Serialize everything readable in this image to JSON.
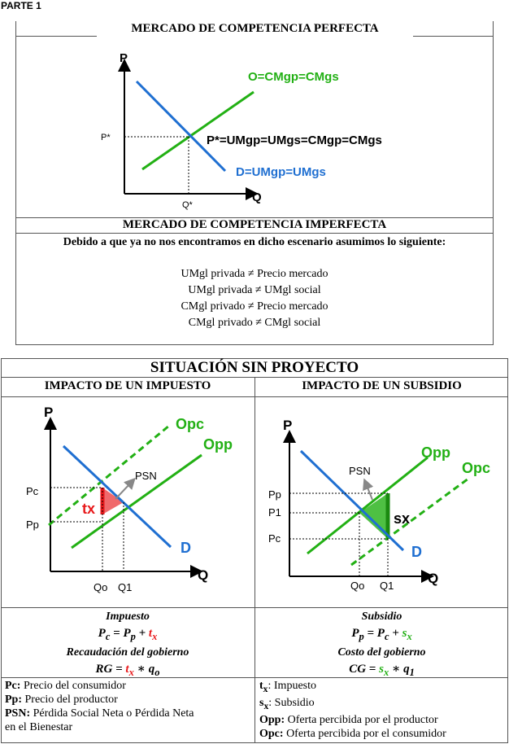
{
  "part_label": "PARTE 1",
  "top": {
    "perfect_title": "MERCADO DE COMPETENCIA PERFECTA",
    "chart": {
      "y_label": "P",
      "x_label": "Q",
      "p_star": "P*",
      "q_star": "Q*",
      "supply_label": "O=CMgp=CMgs",
      "equilibrium_label": "P*=UMgp=UMgs=CMgp=CMgs",
      "demand_label": "D=UMgp=UMgs"
    },
    "imperfect_title": "MERCADO DE COMPETENCIA IMPERFECTA",
    "assumption": "Debido a que ya no nos encontramos en dicho escenario asumimos lo siguiente:",
    "statements": [
      "UMgl privada ≠ Precio mercado",
      "UMgl privada ≠ UMgl social",
      "CMgl privado ≠ Precio mercado",
      "CMgl privado ≠ CMgl social"
    ]
  },
  "bottom": {
    "title": "SITUACIÓN SIN PROYECTO",
    "tax": {
      "header": "IMPACTO DE UN IMPUESTO",
      "chart": {
        "y_label": "P",
        "x_label": "Q",
        "opc": "Opc",
        "opp": "Opp",
        "psn": "PSN",
        "tx": "tx",
        "d": "D",
        "pc": "Pc",
        "pp": "Pp",
        "qo": "Qo",
        "q1": "Q1"
      },
      "formula_title": "Impuesto",
      "formula1": {
        "a": "P",
        "a_sub": "c",
        "eq": " = ",
        "b": "P",
        "b_sub": "p",
        "plus": " + ",
        "c": "t",
        "c_sub": "x"
      },
      "formula2_title": "Recaudación del gobierno",
      "formula2": {
        "a": "RG",
        "eq": " = ",
        "b": "t",
        "b_sub": "x",
        "times": " ∗ ",
        "c": "q",
        "c_sub": "o"
      }
    },
    "subsidy": {
      "header": "IMPACTO DE UN SUBSIDIO",
      "chart": {
        "y_label": "P",
        "x_label": "Q",
        "opp": "Opp",
        "opc": "Opc",
        "psn": "PSN",
        "sx": "sx",
        "d": "D",
        "pp": "Pp",
        "p1": "P1",
        "pc": "Pc",
        "qo": "Qo",
        "q1": "Q1"
      },
      "formula_title": "Subsidio",
      "formula1": {
        "a": "P",
        "a_sub": "p",
        "eq": " = ",
        "b": "P",
        "b_sub": "c",
        "plus": " + ",
        "c": "s",
        "c_sub": "x"
      },
      "formula2_title": "Costo del gobierno",
      "formula2": {
        "a": "CG",
        "eq": " = ",
        "b": "s",
        "b_sub": "x",
        "times": " ∗ ",
        "c": "q",
        "c_sub": "1"
      }
    },
    "legend_left": [
      {
        "key": "Pc:",
        "text": " Precio del consumidor"
      },
      {
        "key": "Pp:",
        "text": " Precio del productor"
      },
      {
        "key": "PSN:",
        "text": " Pérdida Social Neta o Pérdida Neta"
      },
      {
        "key": "",
        "text": "en el Bienestar"
      }
    ],
    "legend_right": [
      {
        "key": "t",
        "sub": "x",
        "text": ": Impuesto"
      },
      {
        "key": "s",
        "sub": "x",
        "text": ": Subsidio"
      },
      {
        "key": "Opp:",
        "sub": "",
        "text": " Oferta percibida por el productor"
      },
      {
        "key": "Opc:",
        "sub": "",
        "text": " Oferta percibida por el consumidor"
      }
    ]
  },
  "colors": {
    "green": "#22b014",
    "blue": "#1f6fd1",
    "red": "#e8191b",
    "dark_green": "#1a8a10"
  }
}
